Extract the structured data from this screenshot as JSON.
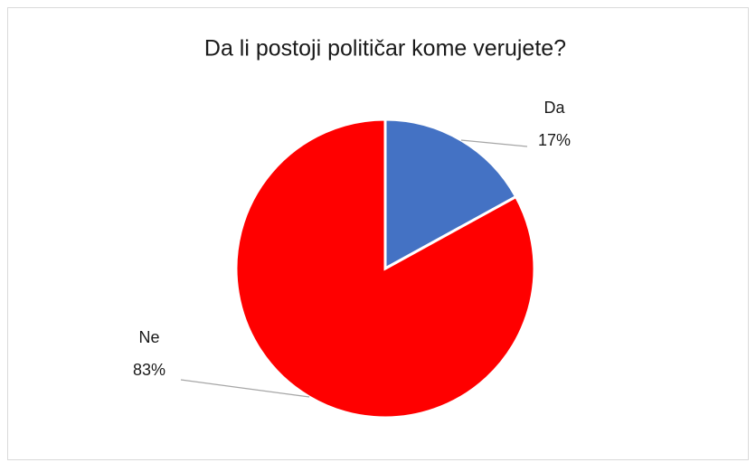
{
  "chart_data": {
    "type": "pie",
    "title": "Da li postoji političar kome verujete?",
    "categories": [
      "Da",
      "Ne"
    ],
    "values": [
      17,
      83
    ],
    "value_labels": [
      "17%",
      "83%"
    ],
    "colors": [
      "#4472c4",
      "#ff0000"
    ]
  }
}
